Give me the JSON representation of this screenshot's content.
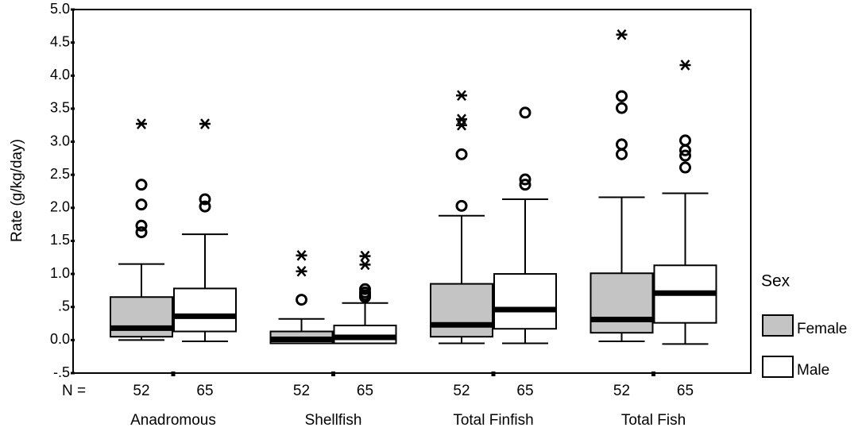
{
  "chart_data": {
    "type": "boxplot",
    "y_label": "Rate (g/kg/day)",
    "n_label": "N =",
    "legend_title": "Sex",
    "categories": [
      "Anadromous",
      "Shellfish",
      "Total Finfish",
      "Total Fish"
    ],
    "ylim": [
      -0.5,
      5.0
    ],
    "yticks": [
      {
        "value": 5.0,
        "label": "5.0"
      },
      {
        "value": 4.5,
        "label": "4.5"
      },
      {
        "value": 4.0,
        "label": "4.0"
      },
      {
        "value": 3.5,
        "label": "3.5"
      },
      {
        "value": 3.0,
        "label": "3.0"
      },
      {
        "value": 2.5,
        "label": "2.5"
      },
      {
        "value": 2.0,
        "label": "2.0"
      },
      {
        "value": 1.5,
        "label": "1.5"
      },
      {
        "value": 1.0,
        "label": "1.0"
      },
      {
        "value": 0.5,
        "label": ".5"
      },
      {
        "value": 0,
        "label": "0.0"
      },
      {
        "value": -0.5,
        "label": "-.5"
      }
    ],
    "series": [
      {
        "name": "Female",
        "color": "#c4c4c4",
        "n": [
          52,
          52,
          52,
          52
        ],
        "boxes": [
          {
            "whislo": 0.0,
            "q1": 0.05,
            "med": 0.18,
            "q3": 0.65,
            "whishi": 1.15,
            "outliers": [
              2.35,
              2.05,
              1.73,
              1.63
            ],
            "extremes": [
              3.27
            ]
          },
          {
            "whislo": -0.05,
            "q1": -0.05,
            "med": 0.01,
            "q3": 0.13,
            "whishi": 0.32,
            "outliers": [
              0.61
            ],
            "extremes": [
              1.28,
              1.04
            ]
          },
          {
            "whislo": -0.05,
            "q1": 0.05,
            "med": 0.23,
            "q3": 0.85,
            "whishi": 1.88,
            "outliers": [
              2.03,
              2.81
            ],
            "extremes": [
              3.7,
              3.34,
              3.25
            ]
          },
          {
            "whislo": -0.02,
            "q1": 0.11,
            "med": 0.31,
            "q3": 1.01,
            "whishi": 2.16,
            "outliers": [
              3.69,
              3.51,
              2.96,
              2.81
            ],
            "extremes": [
              4.62
            ]
          }
        ]
      },
      {
        "name": "Male",
        "color": "#ffffff",
        "n": [
          65,
          65,
          65,
          65
        ],
        "boxes": [
          {
            "whislo": -0.02,
            "q1": 0.13,
            "med": 0.36,
            "q3": 0.78,
            "whishi": 1.6,
            "outliers": [
              2.13,
              2.02
            ],
            "extremes": [
              3.27
            ]
          },
          {
            "whislo": -0.05,
            "q1": -0.05,
            "med": 0.04,
            "q3": 0.22,
            "whishi": 0.56,
            "outliers": [
              0.77,
              0.72,
              0.68,
              0.65
            ],
            "extremes": [
              1.27,
              1.14
            ]
          },
          {
            "whislo": -0.05,
            "q1": 0.17,
            "med": 0.46,
            "q3": 1.0,
            "whishi": 2.13,
            "outliers": [
              3.44,
              2.43,
              2.35
            ],
            "extremes": []
          },
          {
            "whislo": -0.06,
            "q1": 0.26,
            "med": 0.71,
            "q3": 1.13,
            "whishi": 2.22,
            "outliers": [
              3.02,
              2.87,
              2.79,
              2.61
            ],
            "extremes": [
              4.16
            ]
          }
        ]
      }
    ]
  }
}
